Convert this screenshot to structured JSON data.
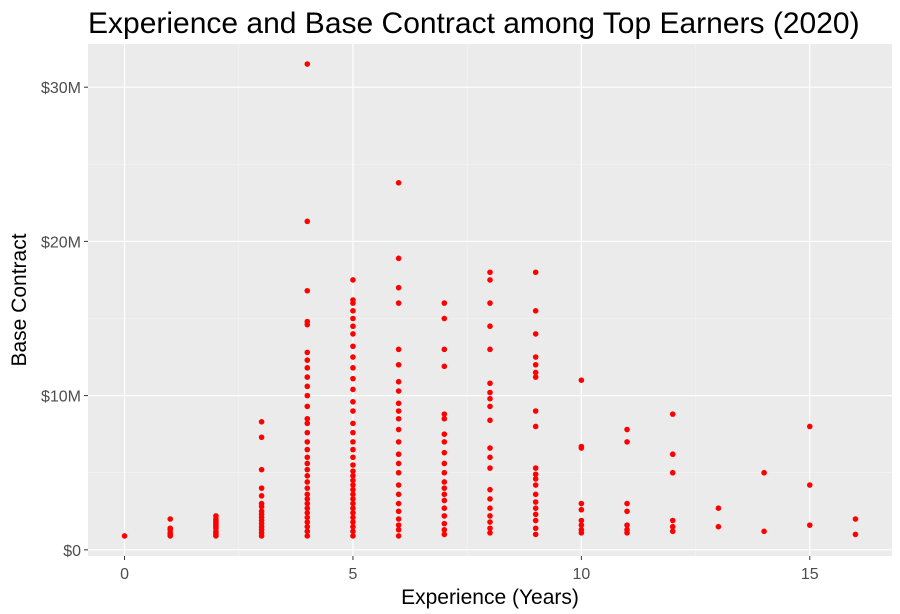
{
  "chart_data": {
    "type": "scatter",
    "title": "Experience and Base Contract among Top Earners (2020)",
    "xlabel": "Experience (Years)",
    "ylabel": "Base Contract",
    "xlim": [
      -0.8,
      16.8
    ],
    "ylim": [
      -0.4,
      32.8
    ],
    "x_ticks": [
      0,
      5,
      10,
      15
    ],
    "x_tick_labels": [
      "0",
      "5",
      "10",
      "15"
    ],
    "y_ticks": [
      0,
      10,
      20,
      30
    ],
    "y_tick_labels": [
      "$0",
      "$10M",
      "$20M",
      "$30M"
    ],
    "y_unit": "millions of dollars",
    "grid": true,
    "legend": "none",
    "colors": {
      "point": "#ff0000",
      "panel_background": "#ebebeb",
      "grid_major": "#ffffff",
      "grid_minor": "#f5f5f5"
    },
    "points": [
      [
        0,
        0.9
      ],
      [
        1,
        0.9
      ],
      [
        1,
        1.0
      ],
      [
        1,
        1.1
      ],
      [
        1,
        1.3
      ],
      [
        1,
        1.4
      ],
      [
        1,
        2.0
      ],
      [
        2,
        0.9
      ],
      [
        2,
        1.0
      ],
      [
        2,
        1.1
      ],
      [
        2,
        1.2
      ],
      [
        2,
        1.4
      ],
      [
        2,
        1.5
      ],
      [
        2,
        1.6
      ],
      [
        2,
        1.7
      ],
      [
        2,
        1.8
      ],
      [
        2,
        1.9
      ],
      [
        2,
        2.0
      ],
      [
        2,
        2.2
      ],
      [
        3,
        0.9
      ],
      [
        3,
        1.1
      ],
      [
        3,
        1.3
      ],
      [
        3,
        1.5
      ],
      [
        3,
        1.7
      ],
      [
        3,
        1.9
      ],
      [
        3,
        2.1
      ],
      [
        3,
        2.3
      ],
      [
        3,
        2.5
      ],
      [
        3,
        2.8
      ],
      [
        3,
        3.0
      ],
      [
        3,
        3.5
      ],
      [
        3,
        4.0
      ],
      [
        3,
        5.2
      ],
      [
        3,
        7.3
      ],
      [
        3,
        8.3
      ],
      [
        4,
        0.9
      ],
      [
        4,
        1.2
      ],
      [
        4,
        1.5
      ],
      [
        4,
        1.8
      ],
      [
        4,
        2.1
      ],
      [
        4,
        2.4
      ],
      [
        4,
        2.7
      ],
      [
        4,
        3.0
      ],
      [
        4,
        3.3
      ],
      [
        4,
        3.6
      ],
      [
        4,
        4.0
      ],
      [
        4,
        4.4
      ],
      [
        4,
        4.8
      ],
      [
        4,
        5.2
      ],
      [
        4,
        5.6
      ],
      [
        4,
        6.0
      ],
      [
        4,
        6.5
      ],
      [
        4,
        7.0
      ],
      [
        4,
        7.6
      ],
      [
        4,
        8.2
      ],
      [
        4,
        8.5
      ],
      [
        4,
        9.3
      ],
      [
        4,
        10.0
      ],
      [
        4,
        10.6
      ],
      [
        4,
        11.2
      ],
      [
        4,
        11.8
      ],
      [
        4,
        12.3
      ],
      [
        4,
        12.8
      ],
      [
        4,
        14.6
      ],
      [
        4,
        14.8
      ],
      [
        4,
        16.8
      ],
      [
        4,
        21.3
      ],
      [
        4,
        31.5
      ],
      [
        5,
        0.9
      ],
      [
        5,
        1.2
      ],
      [
        5,
        1.5
      ],
      [
        5,
        1.8
      ],
      [
        5,
        2.1
      ],
      [
        5,
        2.4
      ],
      [
        5,
        2.7
      ],
      [
        5,
        3.0
      ],
      [
        5,
        3.3
      ],
      [
        5,
        3.6
      ],
      [
        5,
        3.9
      ],
      [
        5,
        4.2
      ],
      [
        5,
        4.5
      ],
      [
        5,
        4.8
      ],
      [
        5,
        5.1
      ],
      [
        5,
        5.5
      ],
      [
        5,
        6.0
      ],
      [
        5,
        6.5
      ],
      [
        5,
        7.0
      ],
      [
        5,
        7.6
      ],
      [
        5,
        8.2
      ],
      [
        5,
        9.0
      ],
      [
        5,
        9.6
      ],
      [
        5,
        10.4
      ],
      [
        5,
        11.1
      ],
      [
        5,
        11.8
      ],
      [
        5,
        12.5
      ],
      [
        5,
        13.2
      ],
      [
        5,
        14.0
      ],
      [
        5,
        14.5
      ],
      [
        5,
        15.0
      ],
      [
        5,
        15.5
      ],
      [
        5,
        16.0
      ],
      [
        5,
        16.2
      ],
      [
        5,
        17.5
      ],
      [
        6,
        0.9
      ],
      [
        6,
        1.3
      ],
      [
        6,
        1.6
      ],
      [
        6,
        2.0
      ],
      [
        6,
        2.5
      ],
      [
        6,
        3.0
      ],
      [
        6,
        3.6
      ],
      [
        6,
        4.2
      ],
      [
        6,
        5.0
      ],
      [
        6,
        5.6
      ],
      [
        6,
        6.2
      ],
      [
        6,
        7.0
      ],
      [
        6,
        7.8
      ],
      [
        6,
        8.5
      ],
      [
        6,
        9.0
      ],
      [
        6,
        9.5
      ],
      [
        6,
        10.3
      ],
      [
        6,
        10.9
      ],
      [
        6,
        12.0
      ],
      [
        6,
        13.0
      ],
      [
        6,
        16.0
      ],
      [
        6,
        17.0
      ],
      [
        6,
        18.9
      ],
      [
        6,
        23.8
      ],
      [
        7,
        1.0
      ],
      [
        7,
        1.3
      ],
      [
        7,
        1.7
      ],
      [
        7,
        2.2
      ],
      [
        7,
        2.7
      ],
      [
        7,
        3.2
      ],
      [
        7,
        3.6
      ],
      [
        7,
        4.0
      ],
      [
        7,
        4.4
      ],
      [
        7,
        5.0
      ],
      [
        7,
        5.6
      ],
      [
        7,
        6.3
      ],
      [
        7,
        7.0
      ],
      [
        7,
        7.5
      ],
      [
        7,
        8.5
      ],
      [
        7,
        8.8
      ],
      [
        7,
        11.9
      ],
      [
        7,
        13.0
      ],
      [
        7,
        15.0
      ],
      [
        7,
        16.0
      ],
      [
        8,
        1.1
      ],
      [
        8,
        1.4
      ],
      [
        8,
        1.8
      ],
      [
        8,
        2.2
      ],
      [
        8,
        2.7
      ],
      [
        8,
        3.3
      ],
      [
        8,
        3.9
      ],
      [
        8,
        5.3
      ],
      [
        8,
        6.0
      ],
      [
        8,
        6.6
      ],
      [
        8,
        8.4
      ],
      [
        8,
        9.3
      ],
      [
        8,
        9.8
      ],
      [
        8,
        10.2
      ],
      [
        8,
        10.8
      ],
      [
        8,
        13.0
      ],
      [
        8,
        14.5
      ],
      [
        8,
        16.0
      ],
      [
        8,
        17.5
      ],
      [
        8,
        18.0
      ],
      [
        9,
        1.0
      ],
      [
        9,
        1.4
      ],
      [
        9,
        1.9
      ],
      [
        9,
        2.3
      ],
      [
        9,
        2.7
      ],
      [
        9,
        3.1
      ],
      [
        9,
        3.6
      ],
      [
        9,
        4.2
      ],
      [
        9,
        4.6
      ],
      [
        9,
        4.9
      ],
      [
        9,
        5.3
      ],
      [
        9,
        8.0
      ],
      [
        9,
        9.0
      ],
      [
        9,
        11.2
      ],
      [
        9,
        11.5
      ],
      [
        9,
        12.0
      ],
      [
        9,
        12.5
      ],
      [
        9,
        14.0
      ],
      [
        9,
        15.5
      ],
      [
        9,
        18.0
      ],
      [
        10,
        1.1
      ],
      [
        10,
        1.3
      ],
      [
        10,
        1.6
      ],
      [
        10,
        1.9
      ],
      [
        10,
        2.6
      ],
      [
        10,
        3.0
      ],
      [
        10,
        6.6
      ],
      [
        10,
        6.7
      ],
      [
        10,
        11.0
      ],
      [
        11,
        1.1
      ],
      [
        11,
        1.3
      ],
      [
        11,
        1.6
      ],
      [
        11,
        2.5
      ],
      [
        11,
        3.0
      ],
      [
        11,
        7.0
      ],
      [
        11,
        7.8
      ],
      [
        12,
        1.2
      ],
      [
        12,
        1.5
      ],
      [
        12,
        1.9
      ],
      [
        12,
        5.0
      ],
      [
        12,
        6.2
      ],
      [
        12,
        8.8
      ],
      [
        13,
        1.5
      ],
      [
        13,
        2.7
      ],
      [
        14,
        1.2
      ],
      [
        14,
        5.0
      ],
      [
        15,
        1.6
      ],
      [
        15,
        4.2
      ],
      [
        15,
        8.0
      ],
      [
        16,
        1.0
      ],
      [
        16,
        2.0
      ]
    ]
  }
}
